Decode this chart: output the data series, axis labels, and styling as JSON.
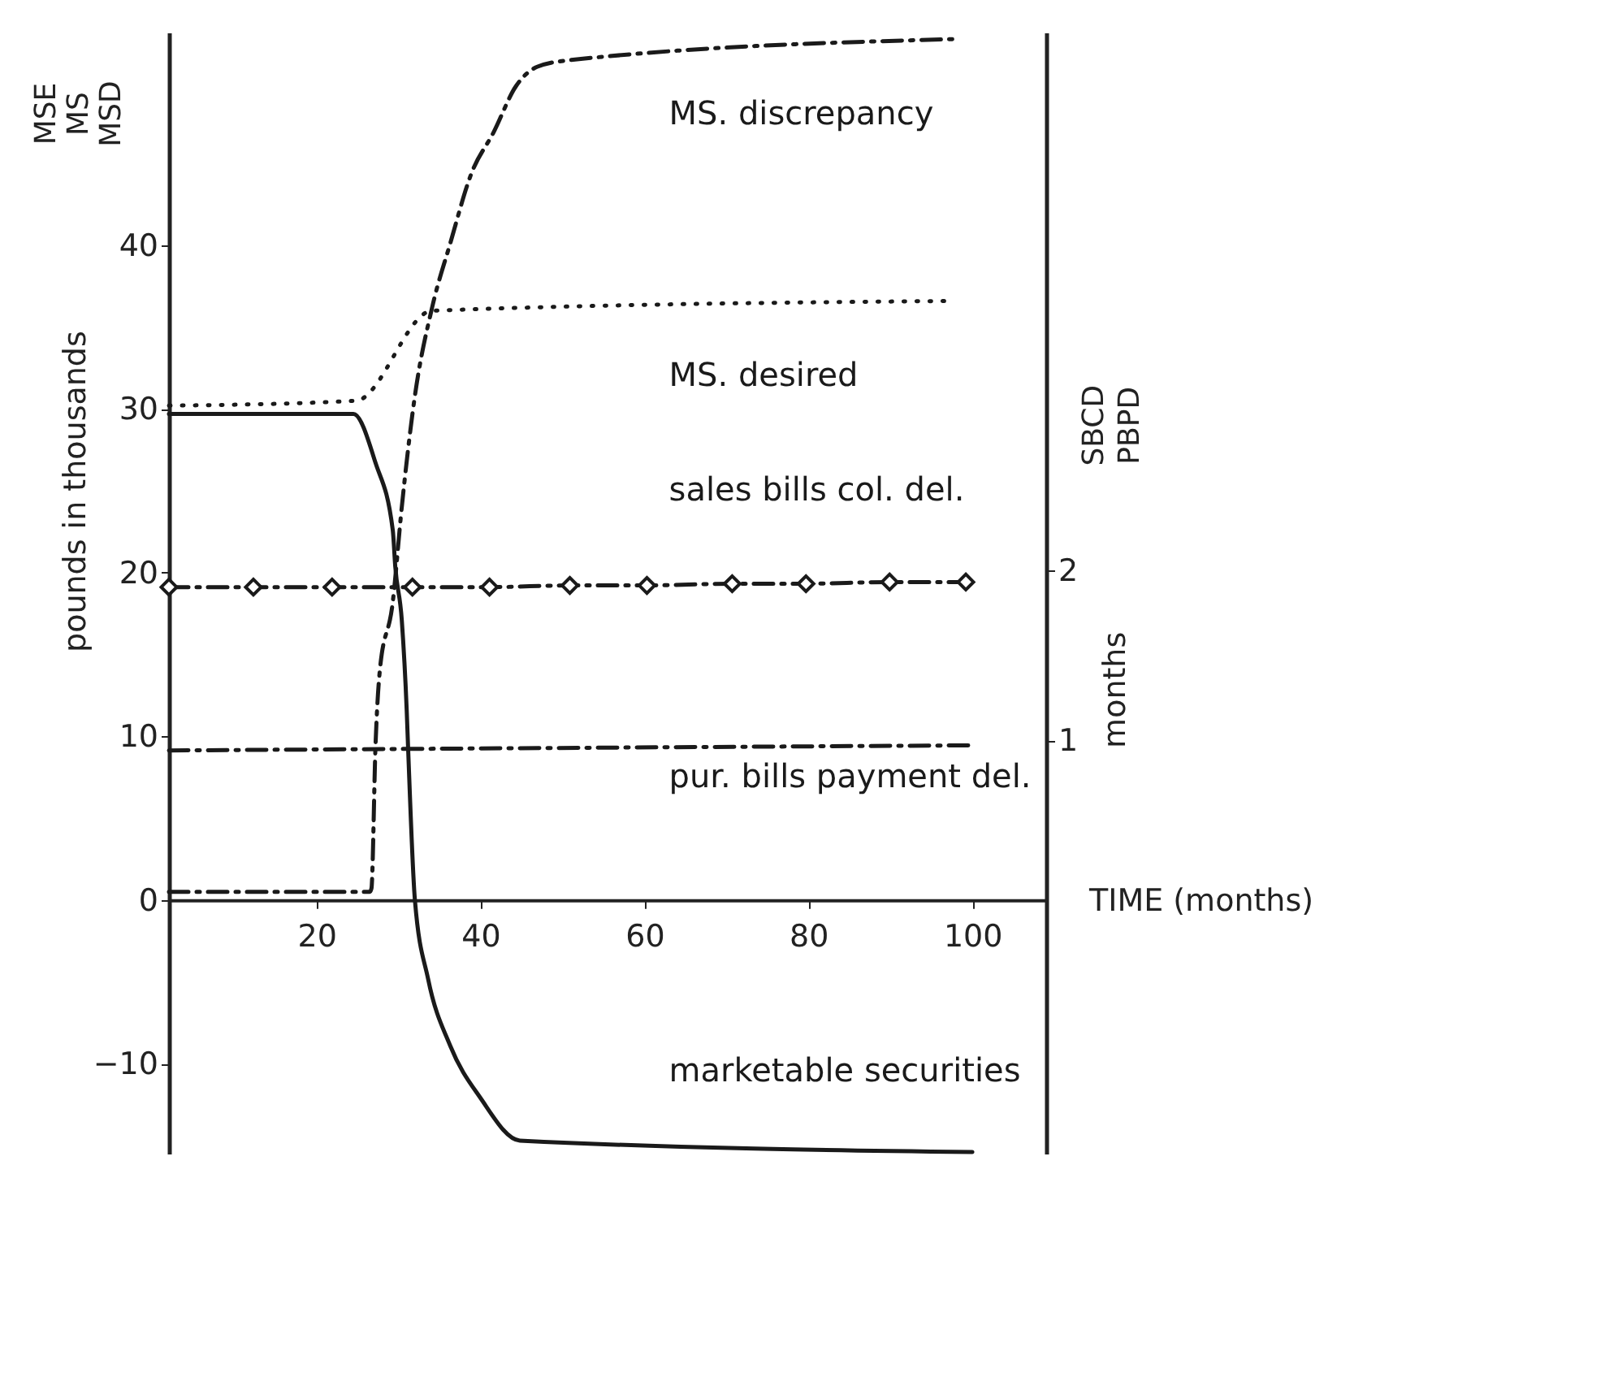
{
  "chart_data": {
    "type": "line",
    "xlabel": "TIME (months)",
    "ylabel": "pounds in thousands",
    "y2label": "months",
    "annotations": [
      "MSE",
      "MS",
      "MSD",
      "SBCD",
      "PBPD"
    ],
    "xlim": [
      2,
      109
    ],
    "xticks": [
      20,
      40,
      60,
      80,
      100
    ],
    "ylim": [
      -15.5,
      53
    ],
    "yticks": [
      -10,
      0,
      10,
      20,
      30,
      40
    ],
    "y2lim": [
      -1.43,
      5.16
    ],
    "y2ticks": [
      1,
      2
    ],
    "grid": false,
    "series": [
      {
        "name": "MS. discrepancy",
        "color": "#1a1a1a",
        "line_style": "dashed",
        "marker": "none",
        "x": [
          2,
          26.5,
          26.7,
          27.2,
          27.7,
          29.3,
          30.4,
          32,
          34.1,
          36.3,
          38.9,
          41.6,
          44.3,
          46.9,
          50.7,
          98
        ],
        "values": [
          0.5,
          0.5,
          0.7,
          9.5,
          13.9,
          18.2,
          24,
          30.8,
          36.2,
          40.1,
          44.4,
          46.9,
          49.7,
          50.9,
          51.3,
          52.6
        ]
      },
      {
        "name": "MS. desired",
        "color": "#1a1a1a",
        "line_style": "dotted",
        "marker": "none",
        "x": [
          2,
          24.8,
          34.1,
          97.6
        ],
        "values": [
          30.2,
          30.5,
          36,
          36.6
        ]
      },
      {
        "name": "sales bills col. del.",
        "color": "#1a1a1a",
        "line_style": "dashed",
        "marker": "diamond",
        "axis": "y2",
        "x": [
          2,
          12.3,
          21.9,
          31.7,
          41.1,
          50.9,
          60.3,
          70.7,
          79.7,
          89.9,
          99.2
        ],
        "values": [
          1.9,
          1.9,
          1.9,
          1.9,
          1.9,
          1.91,
          1.91,
          1.92,
          1.92,
          1.93,
          1.93
        ]
      },
      {
        "name": "pur. bills payment del.",
        "color": "#1a1a1a",
        "line_style": "dashed",
        "marker": "none",
        "axis": "y2",
        "x": [
          2,
          99.5
        ],
        "values": [
          0.94,
          0.97
        ]
      },
      {
        "name": "marketable securities",
        "color": "#1a1a1a",
        "line_style": "solid",
        "marker": "none",
        "x": [
          2,
          24.5,
          27.2,
          29.3,
          29.6,
          30.4,
          31.0,
          31.2,
          32,
          33.6,
          36.3,
          40,
          44.8,
          100
        ],
        "values": [
          29.7,
          29.7,
          26.7,
          22.6,
          20.4,
          17.1,
          11.6,
          8.9,
          0,
          -4.8,
          -8.9,
          -12.1,
          -14.7,
          -15.4
        ]
      }
    ]
  }
}
